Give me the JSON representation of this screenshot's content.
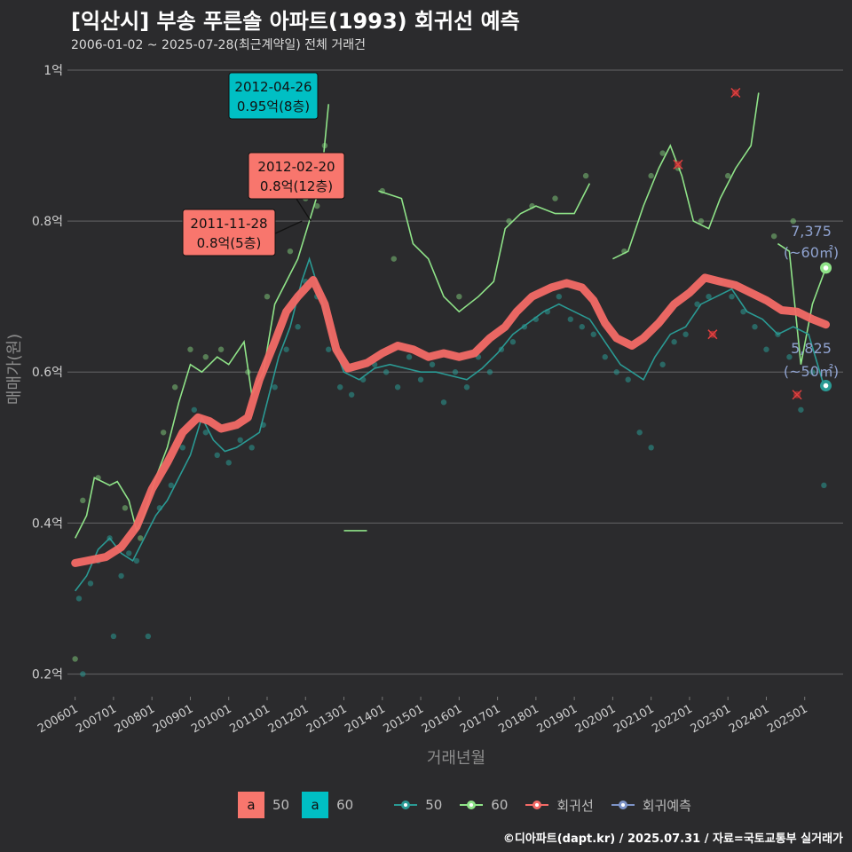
{
  "header": {
    "title": "[익산시] 부송 푸른솔 아파트(1993) 회귀선 예측",
    "subtitle": "2006-01-02 ~ 2025-07-28(최근계약일) 전체 거래건"
  },
  "footer": {
    "credit": "©디아파트(dapt.kr) / 2025.07.31 / 자료=국토교통부 실거래가"
  },
  "legend": {
    "fill_keys": [
      {
        "glyph": "a",
        "label": "50",
        "color": "#f8766d"
      },
      {
        "glyph": "a",
        "label": "60",
        "color": "#00bfc4"
      }
    ],
    "line_keys": [
      {
        "label": "50",
        "color": "#2a9a94"
      },
      {
        "label": "60",
        "color": "#8fe388"
      },
      {
        "label": "회귀선",
        "color": "#f36a66"
      },
      {
        "label": "회귀예측",
        "color": "#7d93c7"
      }
    ]
  },
  "chart_data": {
    "type": "line",
    "xlabel": "거래년월",
    "ylabel": "매매가(원)",
    "x_ticks": [
      "200601",
      "200701",
      "200801",
      "200901",
      "201001",
      "201101",
      "201201",
      "201301",
      "201401",
      "201501",
      "201601",
      "201701",
      "201801",
      "201901",
      "202001",
      "202101",
      "202201",
      "202301",
      "202401",
      "202501"
    ],
    "y_ticks": [
      {
        "value": 0.2,
        "label": "0.2억"
      },
      {
        "value": 0.4,
        "label": "0.4억"
      },
      {
        "value": 0.6,
        "label": "0.6억"
      },
      {
        "value": 0.8,
        "label": "0.8억"
      },
      {
        "value": 1.0,
        "label": "1억"
      }
    ],
    "xlim": [
      2005.8,
      2026.0
    ],
    "ylim": [
      0.17,
      1.02
    ],
    "grid": true,
    "legend_position": "bottom",
    "series": [
      {
        "name": "회귀선",
        "color": "#f36a66",
        "points": [
          [
            2006.0,
            0.347
          ],
          [
            2006.3,
            0.35
          ],
          [
            2006.8,
            0.355
          ],
          [
            2007.2,
            0.368
          ],
          [
            2007.6,
            0.395
          ],
          [
            2008.0,
            0.445
          ],
          [
            2008.4,
            0.48
          ],
          [
            2008.8,
            0.52
          ],
          [
            2009.2,
            0.54
          ],
          [
            2009.5,
            0.535
          ],
          [
            2009.8,
            0.525
          ],
          [
            2010.2,
            0.53
          ],
          [
            2010.5,
            0.54
          ],
          [
            2010.8,
            0.59
          ],
          [
            2011.2,
            0.64
          ],
          [
            2011.5,
            0.68
          ],
          [
            2011.8,
            0.7
          ],
          [
            2012.2,
            0.722
          ],
          [
            2012.5,
            0.69
          ],
          [
            2012.8,
            0.63
          ],
          [
            2013.1,
            0.605
          ],
          [
            2013.6,
            0.612
          ],
          [
            2014.0,
            0.625
          ],
          [
            2014.4,
            0.635
          ],
          [
            2014.8,
            0.63
          ],
          [
            2015.2,
            0.62
          ],
          [
            2015.6,
            0.625
          ],
          [
            2016.0,
            0.62
          ],
          [
            2016.4,
            0.625
          ],
          [
            2016.8,
            0.645
          ],
          [
            2017.2,
            0.66
          ],
          [
            2017.5,
            0.68
          ],
          [
            2017.9,
            0.7
          ],
          [
            2018.4,
            0.712
          ],
          [
            2018.8,
            0.718
          ],
          [
            2019.2,
            0.712
          ],
          [
            2019.5,
            0.695
          ],
          [
            2019.8,
            0.665
          ],
          [
            2020.1,
            0.645
          ],
          [
            2020.5,
            0.635
          ],
          [
            2020.8,
            0.645
          ],
          [
            2021.2,
            0.665
          ],
          [
            2021.6,
            0.69
          ],
          [
            2022.0,
            0.705
          ],
          [
            2022.4,
            0.725
          ],
          [
            2022.8,
            0.72
          ],
          [
            2023.2,
            0.715
          ],
          [
            2023.6,
            0.705
          ],
          [
            2024.0,
            0.695
          ],
          [
            2024.4,
            0.682
          ],
          [
            2024.8,
            0.68
          ],
          [
            2025.2,
            0.67
          ],
          [
            2025.55,
            0.663
          ]
        ]
      },
      {
        "name": "50",
        "color": "#2a9a94",
        "points": [
          [
            2006.0,
            0.31
          ],
          [
            2006.3,
            0.33
          ],
          [
            2006.6,
            0.365
          ],
          [
            2006.9,
            0.38
          ],
          [
            2007.2,
            0.36
          ],
          [
            2007.5,
            0.35
          ],
          [
            2007.8,
            0.38
          ],
          [
            2008.1,
            0.41
          ],
          [
            2008.4,
            0.43
          ],
          [
            2008.7,
            0.46
          ],
          [
            2009.0,
            0.49
          ],
          [
            2009.3,
            0.54
          ],
          [
            2009.6,
            0.51
          ],
          [
            2009.9,
            0.495
          ],
          [
            2010.2,
            0.5
          ],
          [
            2010.5,
            0.51
          ],
          [
            2010.8,
            0.52
          ],
          [
            2011.0,
            0.56
          ],
          [
            2011.3,
            0.62
          ],
          [
            2011.6,
            0.66
          ],
          [
            2011.9,
            0.72
          ],
          [
            2012.1,
            0.75
          ],
          [
            2012.4,
            0.7
          ],
          [
            2012.7,
            0.64
          ],
          [
            2013.0,
            0.6
          ],
          [
            2013.4,
            0.59
          ],
          [
            2013.8,
            0.605
          ],
          [
            2014.2,
            0.61
          ],
          [
            2014.6,
            0.605
          ],
          [
            2015.0,
            0.6
          ],
          [
            2015.4,
            0.6
          ],
          [
            2015.8,
            0.595
          ],
          [
            2016.2,
            0.59
          ],
          [
            2016.6,
            0.605
          ],
          [
            2017.0,
            0.625
          ],
          [
            2017.4,
            0.65
          ],
          [
            2017.8,
            0.665
          ],
          [
            2018.2,
            0.68
          ],
          [
            2018.6,
            0.69
          ],
          [
            2019.0,
            0.68
          ],
          [
            2019.4,
            0.67
          ],
          [
            2019.8,
            0.64
          ],
          [
            2020.2,
            0.61
          ],
          [
            2020.5,
            0.6
          ],
          [
            2020.8,
            0.59
          ],
          [
            2021.1,
            0.62
          ],
          [
            2021.5,
            0.65
          ],
          [
            2021.9,
            0.66
          ],
          [
            2022.3,
            0.69
          ],
          [
            2022.7,
            0.7
          ],
          [
            2023.1,
            0.71
          ],
          [
            2023.5,
            0.68
          ],
          [
            2023.9,
            0.67
          ],
          [
            2024.3,
            0.65
          ],
          [
            2024.7,
            0.66
          ],
          [
            2025.1,
            0.65
          ],
          [
            2025.5,
            0.582
          ]
        ]
      },
      {
        "name": "60",
        "color": "#8fe388",
        "segments": [
          [
            [
              2006.0,
              0.38
            ],
            [
              2006.3,
              0.41
            ],
            [
              2006.5,
              0.46
            ],
            [
              2006.9,
              0.45
            ],
            [
              2007.1,
              0.455
            ],
            [
              2007.4,
              0.43
            ],
            [
              2007.6,
              0.39
            ],
            [
              2007.8,
              0.41
            ],
            [
              2008.1,
              0.46
            ],
            [
              2008.4,
              0.5
            ],
            [
              2008.7,
              0.56
            ],
            [
              2009.0,
              0.61
            ],
            [
              2009.3,
              0.6
            ],
            [
              2009.7,
              0.62
            ],
            [
              2010.0,
              0.61
            ],
            [
              2010.4,
              0.64
            ],
            [
              2010.6,
              0.57
            ],
            [
              2010.9,
              0.6
            ],
            [
              2011.2,
              0.69
            ],
            [
              2011.5,
              0.72
            ],
            [
              2011.8,
              0.75
            ],
            [
              2012.1,
              0.8
            ],
            [
              2012.4,
              0.85
            ],
            [
              2012.6,
              0.955
            ]
          ],
          [
            [
              2013.0,
              0.39
            ],
            [
              2013.6,
              0.39
            ]
          ],
          [
            [
              2013.9,
              0.84
            ],
            [
              2014.5,
              0.83
            ],
            [
              2014.8,
              0.77
            ],
            [
              2015.2,
              0.75
            ],
            [
              2015.6,
              0.7
            ],
            [
              2016.0,
              0.68
            ],
            [
              2016.5,
              0.7
            ],
            [
              2016.9,
              0.72
            ],
            [
              2017.2,
              0.79
            ],
            [
              2017.6,
              0.81
            ],
            [
              2018.0,
              0.82
            ],
            [
              2018.5,
              0.81
            ],
            [
              2019.0,
              0.81
            ],
            [
              2019.4,
              0.85
            ]
          ],
          [
            [
              2020.0,
              0.75
            ],
            [
              2020.4,
              0.76
            ],
            [
              2020.8,
              0.82
            ],
            [
              2021.2,
              0.87
            ],
            [
              2021.5,
              0.9
            ],
            [
              2021.8,
              0.86
            ],
            [
              2022.1,
              0.8
            ],
            [
              2022.5,
              0.79
            ],
            [
              2022.8,
              0.83
            ],
            [
              2023.2,
              0.87
            ],
            [
              2023.6,
              0.9
            ],
            [
              2023.8,
              0.97
            ]
          ],
          [
            [
              2024.3,
              0.77
            ],
            [
              2024.6,
              0.76
            ],
            [
              2024.9,
              0.61
            ],
            [
              2025.2,
              0.69
            ],
            [
              2025.55,
              0.738
            ]
          ]
        ]
      }
    ],
    "scatter_50": [
      [
        2006.1,
        0.3
      ],
      [
        2006.2,
        0.2
      ],
      [
        2006.4,
        0.32
      ],
      [
        2006.6,
        0.35
      ],
      [
        2006.9,
        0.38
      ],
      [
        2007.0,
        0.25
      ],
      [
        2007.2,
        0.33
      ],
      [
        2007.4,
        0.36
      ],
      [
        2007.6,
        0.35
      ],
      [
        2007.9,
        0.25
      ],
      [
        2008.2,
        0.42
      ],
      [
        2008.5,
        0.45
      ],
      [
        2008.8,
        0.5
      ],
      [
        2009.1,
        0.55
      ],
      [
        2009.4,
        0.52
      ],
      [
        2009.7,
        0.49
      ],
      [
        2010.0,
        0.48
      ],
      [
        2010.3,
        0.51
      ],
      [
        2010.6,
        0.5
      ],
      [
        2010.9,
        0.53
      ],
      [
        2011.2,
        0.58
      ],
      [
        2011.5,
        0.63
      ],
      [
        2011.8,
        0.66
      ],
      [
        2012.0,
        0.72
      ],
      [
        2012.3,
        0.7
      ],
      [
        2012.6,
        0.63
      ],
      [
        2012.9,
        0.58
      ],
      [
        2013.2,
        0.57
      ],
      [
        2013.5,
        0.59
      ],
      [
        2013.8,
        0.61
      ],
      [
        2014.1,
        0.6
      ],
      [
        2014.4,
        0.58
      ],
      [
        2014.7,
        0.62
      ],
      [
        2015.0,
        0.59
      ],
      [
        2015.3,
        0.61
      ],
      [
        2015.6,
        0.56
      ],
      [
        2015.9,
        0.6
      ],
      [
        2016.2,
        0.58
      ],
      [
        2016.5,
        0.62
      ],
      [
        2016.8,
        0.6
      ],
      [
        2017.1,
        0.63
      ],
      [
        2017.4,
        0.64
      ],
      [
        2017.7,
        0.66
      ],
      [
        2018.0,
        0.67
      ],
      [
        2018.3,
        0.68
      ],
      [
        2018.6,
        0.7
      ],
      [
        2018.9,
        0.67
      ],
      [
        2019.2,
        0.66
      ],
      [
        2019.5,
        0.65
      ],
      [
        2019.8,
        0.62
      ],
      [
        2020.1,
        0.6
      ],
      [
        2020.4,
        0.59
      ],
      [
        2020.7,
        0.52
      ],
      [
        2021.0,
        0.5
      ],
      [
        2021.3,
        0.61
      ],
      [
        2021.6,
        0.64
      ],
      [
        2021.9,
        0.65
      ],
      [
        2022.2,
        0.69
      ],
      [
        2022.5,
        0.7
      ],
      [
        2022.8,
        0.72
      ],
      [
        2023.1,
        0.7
      ],
      [
        2023.4,
        0.68
      ],
      [
        2023.7,
        0.66
      ],
      [
        2024.0,
        0.63
      ],
      [
        2024.3,
        0.65
      ],
      [
        2024.6,
        0.62
      ],
      [
        2024.9,
        0.55
      ],
      [
        2025.2,
        0.6
      ],
      [
        2025.5,
        0.45
      ]
    ],
    "scatter_60": [
      [
        2006.0,
        0.22
      ],
      [
        2006.2,
        0.43
      ],
      [
        2006.6,
        0.46
      ],
      [
        2007.3,
        0.42
      ],
      [
        2007.7,
        0.38
      ],
      [
        2008.3,
        0.52
      ],
      [
        2008.6,
        0.58
      ],
      [
        2009.0,
        0.63
      ],
      [
        2009.4,
        0.62
      ],
      [
        2009.8,
        0.63
      ],
      [
        2010.5,
        0.6
      ],
      [
        2011.0,
        0.7
      ],
      [
        2011.6,
        0.76
      ],
      [
        2012.0,
        0.83
      ],
      [
        2012.3,
        0.82
      ],
      [
        2012.5,
        0.9
      ],
      [
        2014.0,
        0.84
      ],
      [
        2014.3,
        0.75
      ],
      [
        2016.0,
        0.7
      ],
      [
        2017.3,
        0.8
      ],
      [
        2017.9,
        0.82
      ],
      [
        2018.5,
        0.83
      ],
      [
        2019.3,
        0.86
      ],
      [
        2020.3,
        0.76
      ],
      [
        2021.0,
        0.86
      ],
      [
        2021.3,
        0.89
      ],
      [
        2021.7,
        0.87
      ],
      [
        2022.3,
        0.8
      ],
      [
        2023.0,
        0.86
      ],
      [
        2024.2,
        0.78
      ],
      [
        2024.7,
        0.8
      ]
    ],
    "outliers": [
      [
        2021.7,
        0.875
      ],
      [
        2023.2,
        0.97
      ],
      [
        2022.6,
        0.65
      ],
      [
        2024.8,
        0.57
      ]
    ],
    "annotations": [
      {
        "date": "2012-04-26",
        "value_label": "0.95억(8층)",
        "x": 2012.32,
        "y": 0.95,
        "fill": "#00bfc4"
      },
      {
        "date": "2012-02-20",
        "value_label": "0.8억(12층)",
        "x": 2012.14,
        "y": 0.8,
        "fill": "#f8766d"
      },
      {
        "date": "2011-11-28",
        "value_label": "0.8억(5층)",
        "x": 2011.91,
        "y": 0.8,
        "fill": "#f8766d"
      }
    ],
    "forecasts": [
      {
        "value": "7,375",
        "area": "(~60㎡)",
        "x": 2025.55,
        "y": 0.738,
        "color": "#8fe388"
      },
      {
        "value": "5,825",
        "area": "(~50㎡)",
        "x": 2025.55,
        "y": 0.582,
        "color": "#2a9a94"
      }
    ]
  }
}
